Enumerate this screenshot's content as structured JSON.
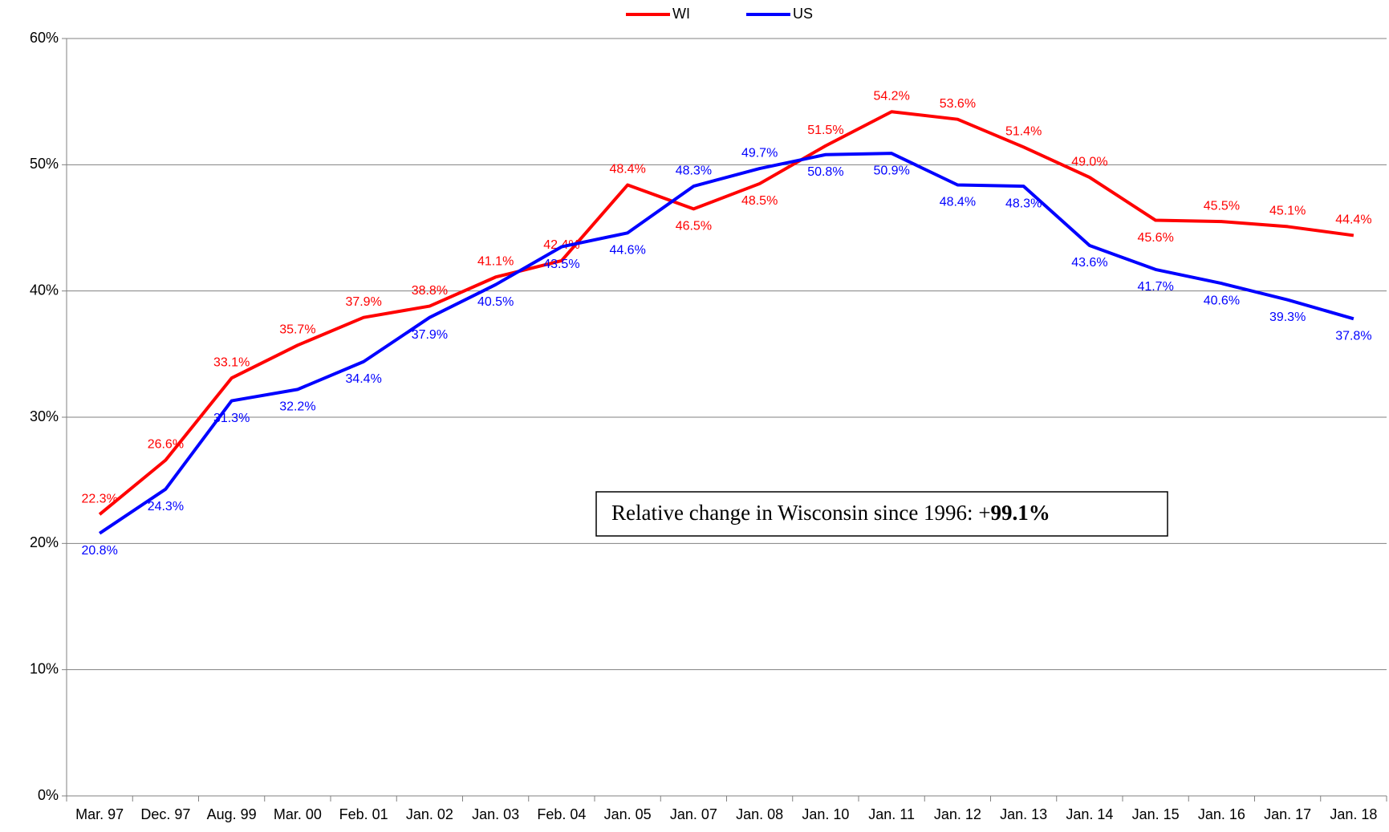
{
  "chart_data": {
    "type": "line",
    "categories": [
      "Mar. 97",
      "Dec. 97",
      "Aug. 99",
      "Mar. 00",
      "Feb. 01",
      "Jan. 02",
      "Jan. 03",
      "Feb. 04",
      "Jan. 05",
      "Jan. 07",
      "Jan. 08",
      "Jan. 10",
      "Jan. 11",
      "Jan. 12",
      "Jan. 13",
      "Jan. 14",
      "Jan. 15",
      "Jan. 16",
      "Jan. 17",
      "Jan. 18"
    ],
    "series": [
      {
        "name": "WI",
        "color": "#ff0000",
        "values": [
          22.3,
          26.6,
          33.1,
          35.7,
          37.9,
          38.8,
          41.1,
          42.4,
          48.4,
          46.5,
          48.5,
          51.5,
          54.2,
          53.6,
          51.4,
          49.0,
          45.6,
          45.5,
          45.1,
          44.4
        ],
        "value_labels": [
          "22.3%",
          "26.6%",
          "33.1%",
          "35.7%",
          "37.9%",
          "38.8%",
          "41.1%",
          "42.4%",
          "48.4%",
          "46.5%",
          "48.5%",
          "51.5%",
          "54.2%",
          "53.6%",
          "51.4%",
          "49.0%",
          "45.6%",
          "45.5%",
          "45.1%",
          "44.4%"
        ]
      },
      {
        "name": "US",
        "color": "#0000ff",
        "values": [
          20.8,
          24.3,
          31.3,
          32.2,
          34.4,
          37.9,
          40.5,
          43.5,
          44.6,
          48.3,
          49.7,
          50.8,
          50.9,
          48.4,
          48.3,
          43.6,
          41.7,
          40.6,
          39.3,
          37.8
        ],
        "value_labels": [
          "20.8%",
          "24.3%",
          "31.3%",
          "32.2%",
          "34.4%",
          "37.9%",
          "40.5%",
          "43.5%",
          "44.6%",
          "48.3%",
          "49.7%",
          "50.8%",
          "50.9%",
          "48.4%",
          "48.3%",
          "43.6%",
          "41.7%",
          "40.6%",
          "39.3%",
          "37.8%"
        ]
      }
    ],
    "ylim": [
      0,
      60
    ],
    "yticks": [
      {
        "value": 0,
        "label": "0%"
      },
      {
        "value": 10,
        "label": "10%"
      },
      {
        "value": 20,
        "label": "20%"
      },
      {
        "value": 30,
        "label": "30%"
      },
      {
        "value": 40,
        "label": "40%"
      },
      {
        "value": 50,
        "label": "50%"
      },
      {
        "value": 60,
        "label": "60%"
      }
    ],
    "grid": true,
    "legend": "top",
    "annotation": {
      "text": "Relative change in Wisconsin since 1996: +",
      "emphasis": "99.1%"
    }
  }
}
